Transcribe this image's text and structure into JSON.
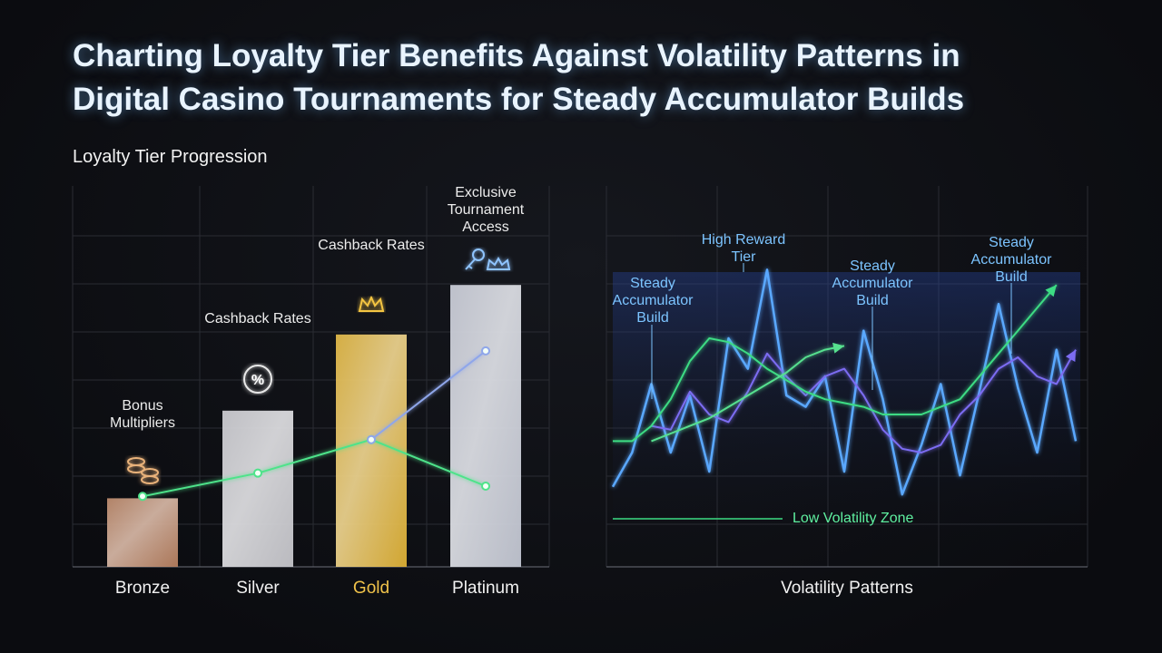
{
  "page_title": [
    "Charting Loyalty Tier Benefits Against Volatility Patterns in",
    "Digital Casino Tournaments for Steady Accumulator Builds"
  ],
  "chart_data": [
    {
      "type": "bar",
      "title": "Loyalty Tier Progression",
      "categories": [
        "Bronze",
        "Silver",
        "Gold",
        "Platinum"
      ],
      "values": [
        18,
        41,
        61,
        74
      ],
      "colors": [
        "#b9805f",
        "#c9c9ce",
        "#e2b334",
        "#c6cad6"
      ],
      "annotations": [
        "Bonus Multipliers",
        "Cashback Rates",
        "Cashback Rates",
        "Exclusive Tournament Access"
      ],
      "ylim": [
        0,
        100
      ],
      "lines": [
        {
          "color": "#4ee38a",
          "values": [
            18.5,
            24.6,
            33.4,
            21.2
          ]
        },
        {
          "color": "#8fa6ea",
          "values": [
            null,
            null,
            33.4,
            56.7
          ]
        }
      ]
    },
    {
      "type": "line",
      "xlabel": "Volatility Patterns",
      "ylim": [
        0,
        100
      ],
      "series": [
        {
          "color": "#5aa8ff",
          "values": [
            21,
            30,
            48,
            30,
            45,
            25,
            60,
            52,
            78,
            45,
            42,
            50,
            25,
            62,
            44,
            19,
            32,
            48,
            24,
            46,
            69,
            47,
            30,
            57,
            33
          ]
        },
        {
          "color": "#7c6cf2",
          "values": [
            null,
            null,
            37,
            36,
            46,
            40,
            38,
            46,
            56,
            50,
            45,
            50,
            52,
            45,
            36,
            31,
            30,
            32,
            40,
            45,
            52,
            55,
            50,
            48,
            57
          ]
        },
        {
          "color": "#3ddc84",
          "values": [
            33,
            33,
            37,
            44,
            54,
            60,
            59,
            56,
            52,
            49,
            46,
            44,
            43,
            42,
            40,
            40,
            40,
            42,
            44,
            50,
            56,
            62,
            68,
            74,
            null
          ]
        },
        {
          "color": "#57e08f",
          "values": [
            null,
            null,
            33,
            35,
            37,
            39,
            42,
            45,
            48,
            51,
            55,
            57,
            58,
            null,
            null,
            null,
            null,
            null,
            null,
            null,
            null,
            null,
            null,
            null,
            null
          ]
        }
      ],
      "annotations": [
        "Steady Accumulator Build",
        "High Reward Tier",
        "Steady Accumulator Build",
        "Steady Accumulator Build",
        "Low Volatility Zone"
      ]
    }
  ]
}
